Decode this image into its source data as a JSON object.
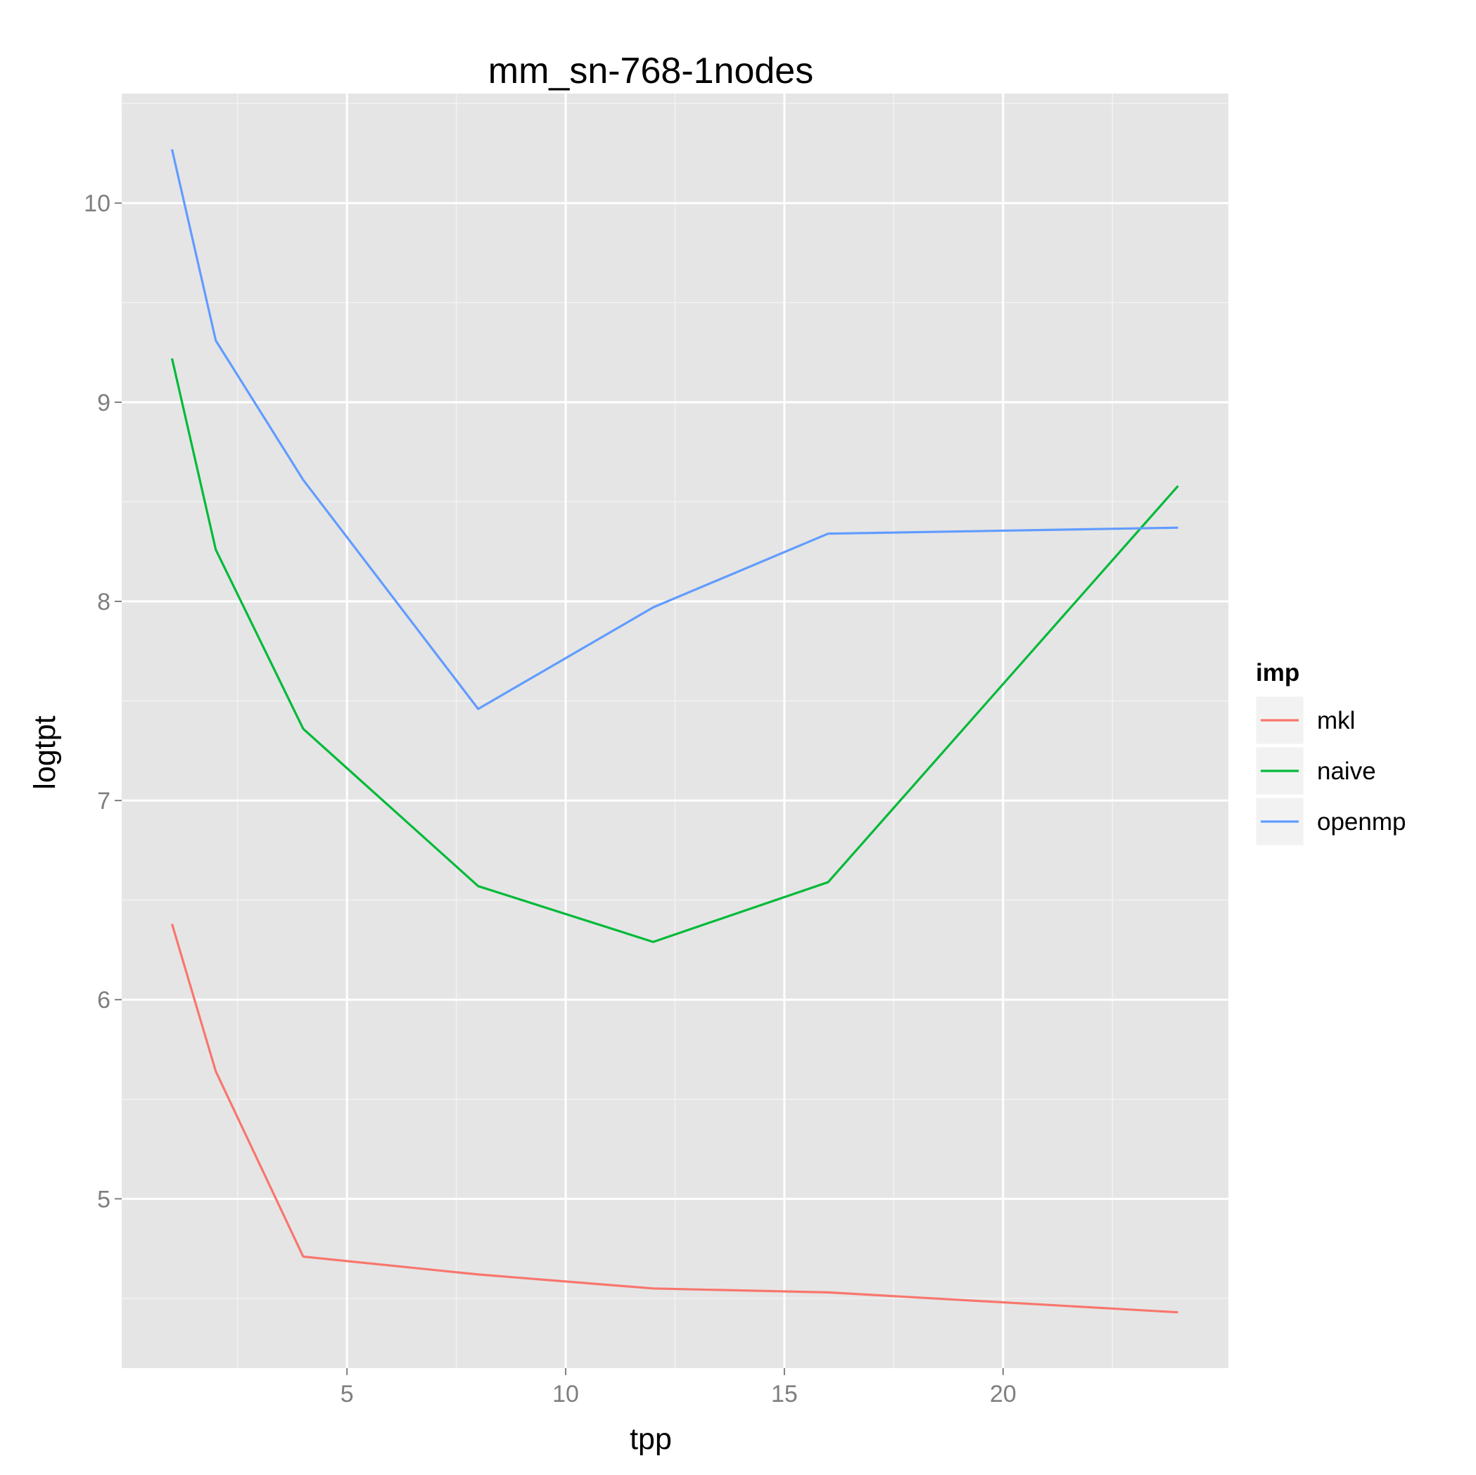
{
  "chart_data": {
    "type": "line",
    "title": "mm_sn-768-1nodes",
    "xlabel": "tpp",
    "ylabel": "logtpt",
    "x": [
      1,
      2,
      4,
      8,
      12,
      16,
      24
    ],
    "series": [
      {
        "name": "mkl",
        "color": "#F8766D",
        "values": [
          6.38,
          5.64,
          4.71,
          4.62,
          4.55,
          4.53,
          4.43
        ]
      },
      {
        "name": "naive",
        "color": "#00BA38",
        "values": [
          9.22,
          8.26,
          7.36,
          6.57,
          6.29,
          6.59,
          8.58
        ]
      },
      {
        "name": "openmp",
        "color": "#619CFF",
        "values": [
          10.27,
          9.31,
          8.61,
          7.46,
          7.97,
          8.34,
          8.37
        ]
      }
    ],
    "xlim": [
      -0.15,
      25.15
    ],
    "ylim": [
      4.15,
      10.55
    ],
    "x_ticks": [
      5,
      10,
      15,
      20
    ],
    "x_tick_labels": [
      "5",
      "10",
      "15",
      "20"
    ],
    "x_minor": [
      2.5,
      7.5,
      12.5,
      17.5,
      22.5
    ],
    "y_ticks": [
      5,
      6,
      7,
      8,
      9,
      10
    ],
    "y_tick_labels": [
      "5",
      "6",
      "7",
      "8",
      "9",
      "10"
    ],
    "y_minor": [
      4.5,
      5.5,
      6.5,
      7.5,
      8.5,
      9.5,
      10.5
    ],
    "grid": true,
    "legend": {
      "title": "imp",
      "position": "right"
    },
    "panel_color": "#E5E5E5",
    "grid_color": "#FFFFFF"
  }
}
